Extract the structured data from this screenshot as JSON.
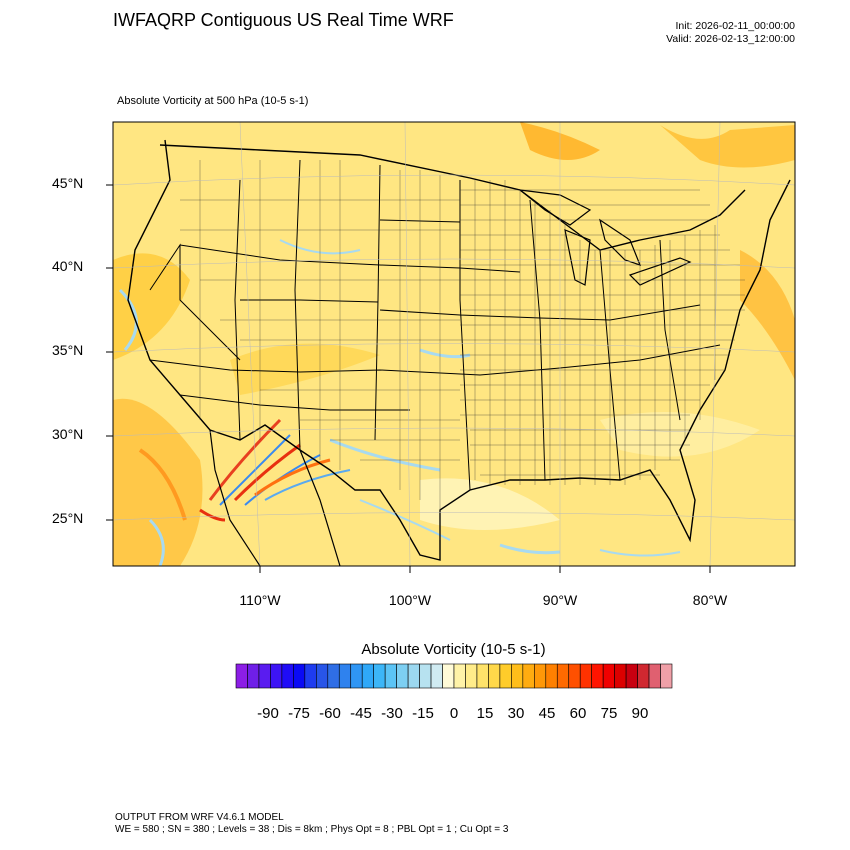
{
  "header": {
    "title": "IWFAQRP Contiguous US Real Time WRF",
    "init": "Init: 2026-02-11_00:00:00",
    "valid": "Valid: 2026-02-13_12:00:00",
    "subtitle": "Absolute Vorticity at 500 hPa   (10-5 s-1)"
  },
  "axes": {
    "lat_labels": [
      "45°N",
      "40°N",
      "35°N",
      "30°N",
      "25°N"
    ],
    "lon_labels": [
      "110°W",
      "100°W",
      "90°W",
      "80°W"
    ]
  },
  "colorbar": {
    "title": "Absolute Vorticity  (10-5 s-1)",
    "labels": [
      "-90",
      "-75",
      "-60",
      "-45",
      "-30",
      "-15",
      "0",
      "15",
      "30",
      "45",
      "60",
      "75",
      "90"
    ],
    "colors": [
      "#8c1ee6",
      "#6f1fe8",
      "#5a1cf0",
      "#3d14f5",
      "#1f0cf7",
      "#0a0af5",
      "#1e3cf0",
      "#2855e8",
      "#2f6ee6",
      "#2f82ee",
      "#2f96f5",
      "#2fa8f8",
      "#3cb6f8",
      "#5cc4f5",
      "#7dcff2",
      "#9cd8f0",
      "#b7e2f0",
      "#d0ebf2",
      "#fffbd8",
      "#fff3a8",
      "#ffec8a",
      "#ffe36a",
      "#ffd84a",
      "#ffcc2a",
      "#ffbe1a",
      "#ffac10",
      "#ff9808",
      "#ff8000",
      "#ff6a00",
      "#ff5000",
      "#ff3200",
      "#ff1400",
      "#f00000",
      "#dc0000",
      "#c80010",
      "#d02830",
      "#e06070",
      "#f0a0a8"
    ]
  },
  "footer": {
    "line1": "OUTPUT FROM WRF V4.6.1 MODEL",
    "line2": "WE = 580 ; SN = 380 ; Levels = 38 ; Dis = 8km ; Phys Opt = 8 ; PBL Opt = 1 ; Cu Opt = 3"
  }
}
